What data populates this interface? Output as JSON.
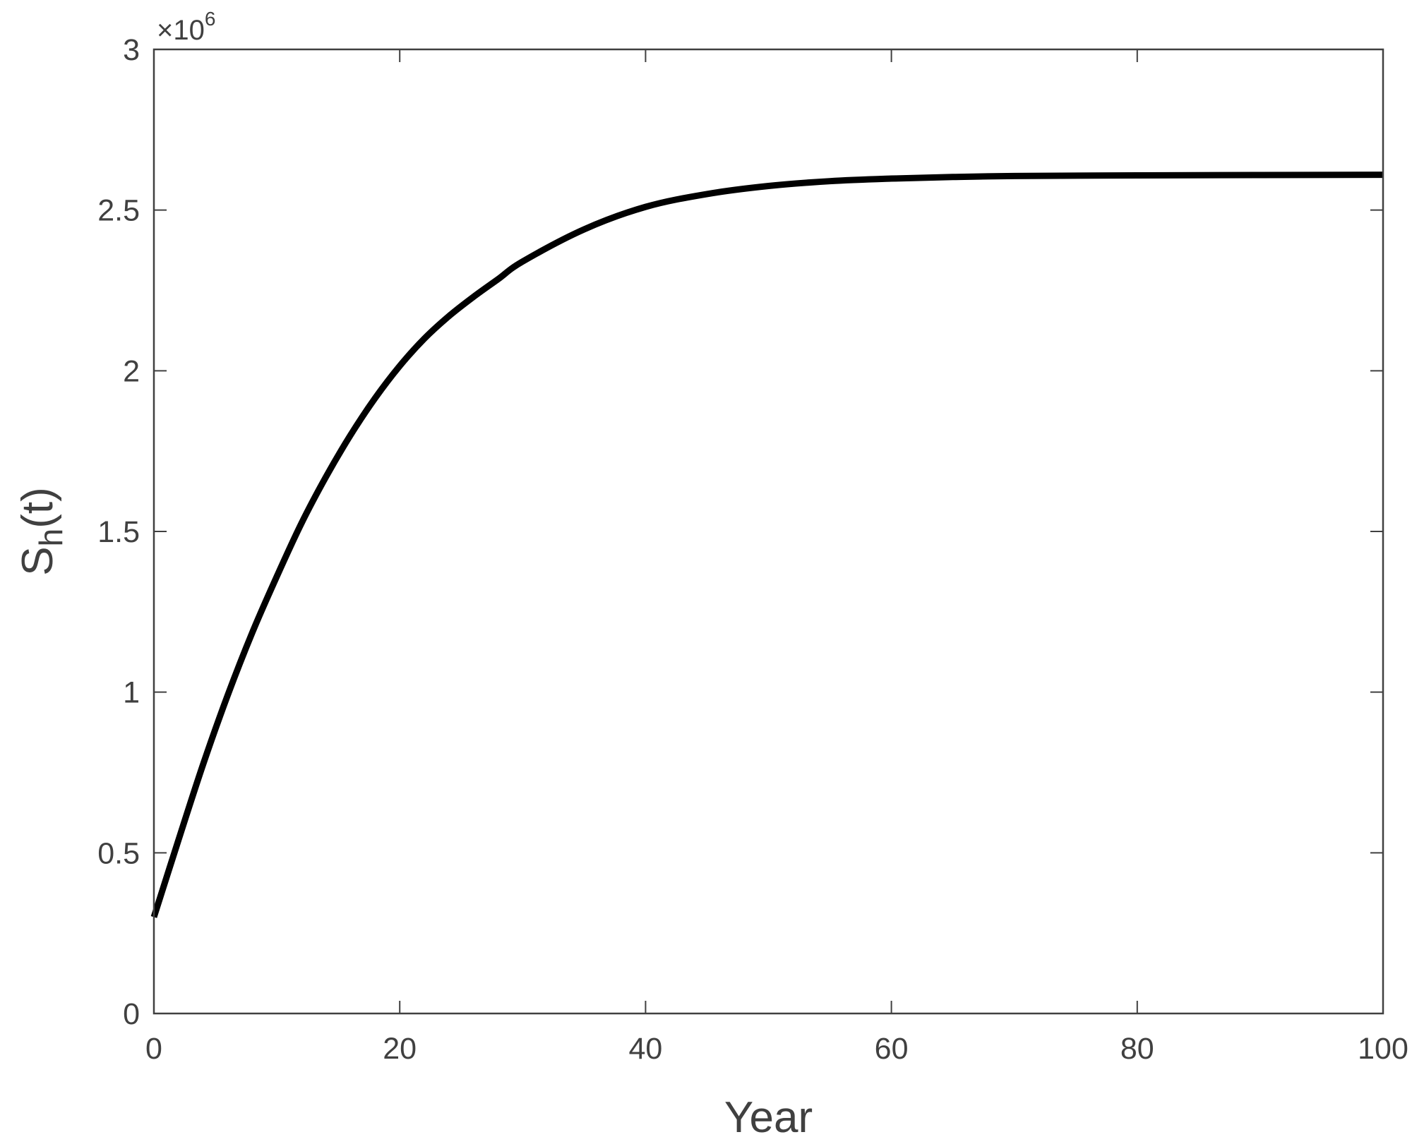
{
  "chart_data": {
    "type": "line",
    "title": "",
    "xlabel": "Year",
    "ylabel": {
      "main": "S",
      "subscript": "h",
      "suffix": "(t)"
    },
    "y_multiplier": {
      "prefix": "×10",
      "exponent": "6"
    },
    "xlim": [
      0,
      100
    ],
    "ylim": [
      0,
      3000000
    ],
    "x_ticks": [
      0,
      20,
      40,
      60,
      80,
      100
    ],
    "x_tick_labels": [
      "0",
      "20",
      "40",
      "60",
      "80",
      "100"
    ],
    "y_ticks": [
      0,
      500000,
      1000000,
      1500000,
      2000000,
      2500000,
      3000000
    ],
    "y_tick_labels": [
      "0",
      "0.5",
      "1",
      "1.5",
      "2",
      "2.5",
      "3"
    ],
    "grid": false,
    "box": true,
    "colors": {
      "axis": "#404040",
      "line": "#000000"
    },
    "series": [
      {
        "x": [
          0,
          2,
          4,
          6,
          8,
          10,
          12,
          14,
          16,
          18,
          20,
          22,
          24,
          26,
          28,
          30,
          35,
          40,
          45,
          50,
          55,
          60,
          65,
          70,
          80,
          90,
          100
        ],
        "y": [
          300000,
          540000,
          775000,
          990000,
          1185000,
          1360000,
          1525000,
          1670000,
          1800000,
          1915000,
          2015000,
          2100000,
          2170000,
          2230000,
          2285000,
          2340000,
          2440000,
          2510000,
          2550000,
          2575000,
          2590000,
          2598000,
          2603000,
          2606000,
          2608000,
          2609000,
          2610000
        ]
      }
    ]
  }
}
